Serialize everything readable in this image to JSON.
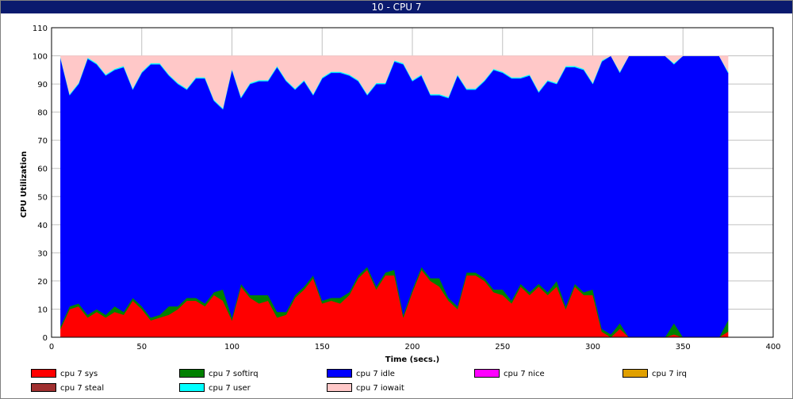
{
  "window": {
    "title": "10 - CPU 7"
  },
  "chart_data": {
    "type": "area",
    "stacked": true,
    "title": "10 - CPU 7",
    "xlabel": "Time (secs.)",
    "ylabel": "CPU Utilization",
    "xlim": [
      0,
      400
    ],
    "ylim": [
      0,
      110
    ],
    "xticks": [
      0,
      50,
      100,
      150,
      200,
      250,
      300,
      350,
      400
    ],
    "yticks": [
      0,
      10,
      20,
      30,
      40,
      50,
      60,
      70,
      80,
      90,
      100,
      110
    ],
    "grid": true,
    "legend_position": "bottom",
    "x": [
      5,
      10,
      15,
      20,
      25,
      30,
      35,
      40,
      45,
      50,
      55,
      60,
      65,
      70,
      75,
      80,
      85,
      90,
      95,
      100,
      105,
      110,
      115,
      120,
      125,
      130,
      135,
      140,
      145,
      150,
      155,
      160,
      165,
      170,
      175,
      180,
      185,
      190,
      195,
      200,
      205,
      210,
      215,
      220,
      225,
      230,
      235,
      240,
      245,
      250,
      255,
      260,
      265,
      270,
      275,
      280,
      285,
      290,
      295,
      300,
      305,
      310,
      315,
      320,
      325,
      330,
      335,
      340,
      345,
      350,
      355,
      360,
      365,
      370,
      375
    ],
    "series": [
      {
        "name": "cpu 7 sys",
        "color": "#ff0000",
        "values": [
          3,
          10,
          11,
          7,
          9,
          7,
          9,
          8,
          13,
          10,
          6,
          7,
          8,
          10,
          13,
          13,
          11,
          15,
          13,
          6,
          18,
          14,
          12,
          13,
          7,
          8,
          14,
          17,
          21,
          12,
          13,
          12,
          15,
          21,
          24,
          17,
          22,
          22,
          7,
          16,
          24,
          20,
          18,
          13,
          10,
          22,
          22,
          20,
          16,
          15,
          12,
          18,
          15,
          18,
          15,
          18,
          10,
          18,
          15,
          15,
          2,
          0,
          3,
          0,
          0,
          0,
          0,
          0,
          1,
          0,
          0,
          0,
          0,
          0,
          2
        ]
      },
      {
        "name": "cpu 7 softirq",
        "color": "#008000",
        "values": [
          1,
          1,
          1,
          1,
          1,
          1,
          2,
          1,
          1,
          1,
          1,
          1,
          3,
          1,
          1,
          1,
          1,
          1,
          4,
          1,
          1,
          1,
          3,
          2,
          2,
          1,
          1,
          1,
          1,
          1,
          1,
          2,
          1,
          1,
          1,
          1,
          1,
          2,
          1,
          1,
          1,
          1,
          3,
          1,
          1,
          1,
          1,
          1,
          1,
          2,
          1,
          1,
          1,
          1,
          1,
          2,
          1,
          1,
          1,
          2,
          1,
          1,
          2,
          0,
          0,
          0,
          0,
          0,
          4,
          0,
          0,
          0,
          0,
          0,
          4
        ]
      },
      {
        "name": "cpu 7 idle",
        "color": "#0000ff",
        "values": [
          95,
          75,
          78,
          91,
          87,
          85,
          84,
          87,
          74,
          83,
          90,
          89,
          82,
          79,
          74,
          78,
          80,
          68,
          64,
          88,
          66,
          75,
          76,
          76,
          87,
          82,
          73,
          73,
          64,
          79,
          80,
          80,
          77,
          69,
          61,
          72,
          67,
          74,
          89,
          74,
          68,
          65,
          65,
          71,
          82,
          65,
          65,
          70,
          78,
          77,
          79,
          73,
          77,
          68,
          75,
          70,
          85,
          77,
          79,
          73,
          95,
          99,
          89,
          100,
          100,
          100,
          100,
          100,
          92,
          100,
          100,
          100,
          100,
          100,
          88
        ]
      },
      {
        "name": "cpu 7 nice",
        "color": "#ff00ff",
        "values": [
          0,
          0,
          0,
          0,
          0,
          0,
          0,
          0,
          0,
          0,
          0,
          0,
          0,
          0,
          0,
          0,
          0,
          0,
          0,
          0,
          0,
          0,
          0,
          0,
          0,
          0,
          0,
          0,
          0,
          0,
          0,
          0,
          0,
          0,
          0,
          0,
          0,
          0,
          0,
          0,
          0,
          0,
          0,
          0,
          0,
          0,
          0,
          0,
          0,
          0,
          0,
          0,
          0,
          0,
          0,
          0,
          0,
          0,
          0,
          0,
          0,
          0,
          0,
          0,
          0,
          0,
          0,
          0,
          0,
          0,
          0,
          0,
          0,
          0,
          0
        ]
      },
      {
        "name": "cpu 7 irq",
        "color": "#e0a000",
        "values": [
          0,
          0,
          0,
          0,
          0,
          0,
          0,
          0,
          0,
          0,
          0,
          0,
          0,
          0,
          0,
          0,
          0,
          0,
          0,
          0,
          0,
          0,
          0,
          0,
          0,
          0,
          0,
          0,
          0,
          0,
          0,
          0,
          0,
          0,
          0,
          0,
          0,
          0,
          0,
          0,
          0,
          0,
          0,
          0,
          0,
          0,
          0,
          0,
          0,
          0,
          0,
          0,
          0,
          0,
          0,
          0,
          0,
          0,
          0,
          0,
          0,
          0,
          0,
          0,
          0,
          0,
          0,
          0,
          0,
          0,
          0,
          0,
          0,
          0,
          0
        ]
      },
      {
        "name": "cpu 7 steal",
        "color": "#a03030",
        "values": [
          0,
          0,
          0,
          0,
          0,
          0,
          0,
          0,
          0,
          0,
          0,
          0,
          0,
          0,
          0,
          0,
          0,
          0,
          0,
          0,
          0,
          0,
          0,
          0,
          0,
          0,
          0,
          0,
          0,
          0,
          0,
          0,
          0,
          0,
          0,
          0,
          0,
          0,
          0,
          0,
          0,
          0,
          0,
          0,
          0,
          0,
          0,
          0,
          0,
          0,
          0,
          0,
          0,
          0,
          0,
          0,
          0,
          0,
          0,
          0,
          0,
          0,
          0,
          0,
          0,
          0,
          0,
          0,
          0,
          0,
          0,
          0,
          0,
          0,
          0
        ]
      },
      {
        "name": "cpu 7 user",
        "color": "#00ffff",
        "values": [
          0.4,
          0.4,
          0.4,
          0.4,
          0.4,
          0.4,
          0.4,
          0.4,
          0.4,
          0.4,
          0.4,
          0.4,
          0.4,
          0.4,
          0.4,
          0.4,
          0.4,
          0.4,
          0.4,
          0.4,
          0.4,
          0.4,
          0.4,
          0.4,
          0.4,
          0.4,
          0.4,
          0.4,
          0.4,
          0.4,
          0.4,
          0.4,
          0.4,
          0.4,
          0.4,
          0.4,
          0.4,
          0.4,
          0.4,
          0.4,
          0.4,
          0.4,
          0.4,
          0.4,
          0.4,
          0.4,
          0.4,
          0.4,
          0.4,
          0.4,
          0.4,
          0.4,
          0.4,
          0.4,
          0.4,
          0.4,
          0.4,
          0.4,
          0.4,
          0.4,
          0.4,
          0,
          0.4,
          0,
          0,
          0,
          0,
          0,
          0.4,
          0,
          0,
          0,
          0,
          0,
          0.4
        ]
      },
      {
        "name": "cpu 7 iowait",
        "color": "#ffc8c8",
        "values": [
          0.6,
          13.6,
          9.6,
          0.6,
          2.6,
          6.6,
          4.6,
          3.6,
          11.6,
          5.6,
          2.6,
          2.6,
          6.6,
          9.6,
          11.6,
          7.6,
          7.6,
          15.6,
          18.6,
          4.6,
          14.6,
          9.6,
          8.6,
          8.6,
          3.6,
          8.6,
          11.6,
          8.6,
          13.6,
          7.6,
          5.6,
          5.6,
          6.6,
          8.6,
          13.6,
          9.6,
          9.6,
          1.6,
          2.6,
          8.6,
          6.6,
          13.6,
          13.6,
          14.6,
          6.6,
          11.6,
          11.6,
          8.6,
          4.6,
          5.6,
          7.6,
          7.6,
          6.6,
          12.6,
          8.6,
          9.6,
          3.6,
          3.6,
          4.6,
          9.6,
          1.6,
          0,
          5.6,
          0,
          0,
          0,
          0,
          0,
          2.6,
          0,
          0,
          0,
          0,
          0,
          5.6
        ]
      }
    ]
  }
}
